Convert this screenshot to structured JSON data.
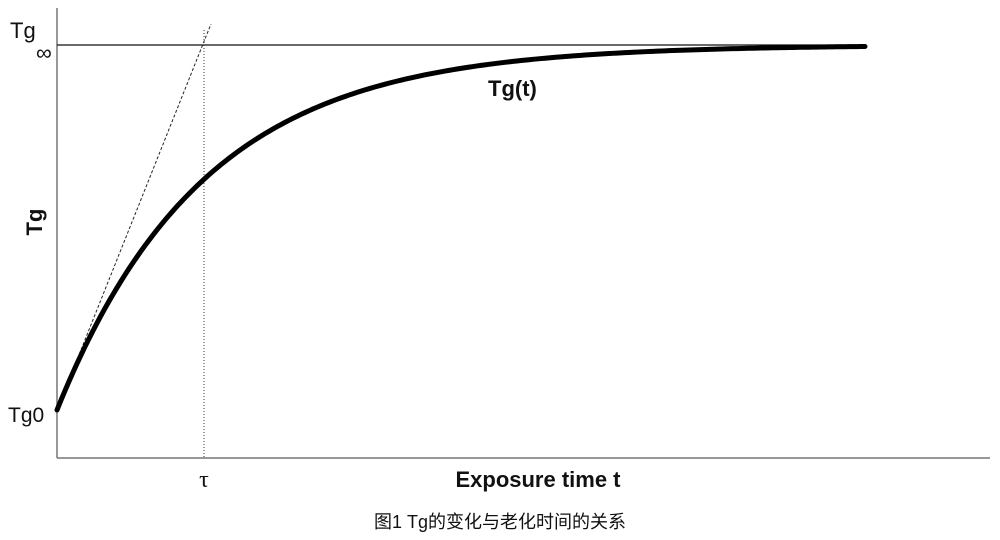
{
  "axis": {
    "y_top_label": "Tg",
    "y_top_subscript": "∞",
    "y_origin_label": "Tg0",
    "y_title": "Tg",
    "x_marker": "τ",
    "x_title": "Exposure time t"
  },
  "curve": {
    "label": "Tg(t)"
  },
  "caption": "图1 Tg的变化与老化时间的关系"
}
